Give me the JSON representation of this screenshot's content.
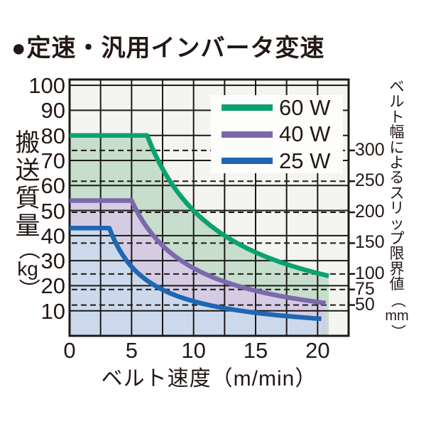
{
  "page": {
    "title": "●定速・汎用インバータ変速"
  },
  "colors": {
    "text": "#231815",
    "grid": "#1c1a18",
    "plot_background": "#f4f4f1",
    "legend_background": "#fdfdfc",
    "green_60w_line": "#0ba26f",
    "purple_40w_line": "#7b69ac",
    "blue_25w_line": "#1e67b3",
    "green_60w_fill": "#c6decb",
    "purple_40w_fill": "#d5cce4",
    "blue_25w_fill": "#ccd9ec"
  },
  "chart_data": {
    "type": "line",
    "title": "●定速・汎用インバータ変速",
    "xlabel": "ベルト速度（m/min）",
    "ylabel_left": "搬送質量（kg）",
    "ylabel_right": "ベルト幅によるスリップ限界値（mm）",
    "xlim": [
      0,
      22.5
    ],
    "ylim": [
      0,
      102.3
    ],
    "grid": "solid black grid, x step 2.5 m/min, y step 10 kg; dashed horizontal slip-limit lines",
    "x_grid_step": 2.5,
    "y_grid_step": 10,
    "x_ticks": [
      0,
      5,
      10,
      15,
      20
    ],
    "y_ticks_left": [
      100,
      90,
      80,
      70,
      60,
      50,
      40,
      30,
      20,
      10
    ],
    "y_axis_right_ticks": [
      {
        "label": "300",
        "kg": 74.0
      },
      {
        "label": "250",
        "kg": 61.7
      },
      {
        "label": "200",
        "kg": 49.3
      },
      {
        "label": "150",
        "kg": 37.0
      },
      {
        "label": "100",
        "kg": 24.7
      },
      {
        "label": "75",
        "kg": 18.5
      },
      {
        "label": "50",
        "kg": 12.3
      }
    ],
    "legend": {
      "position": "top-right",
      "items": [
        "60 W",
        "40 W",
        "25 W"
      ]
    },
    "series": [
      {
        "name": "60 W",
        "id": "60w",
        "color": "#0ba26f",
        "fill": "#c6decb",
        "flat_kg": 80,
        "flat_until_v": 6.25,
        "kg_x_v_const": 500,
        "end_v": 20.9,
        "points": [
          [
            0,
            80
          ],
          [
            6.25,
            80
          ],
          [
            7.5,
            66.7
          ],
          [
            10,
            50
          ],
          [
            12.5,
            40
          ],
          [
            15,
            33.3
          ],
          [
            17.5,
            28.6
          ],
          [
            20,
            25
          ],
          [
            20.9,
            23.9
          ]
        ]
      },
      {
        "name": "40 W",
        "id": "40w",
        "color": "#7b69ac",
        "fill": "#d5cce4",
        "flat_kg": 54,
        "flat_until_v": 5.0,
        "kg_x_v_const": 270,
        "end_v": 20.65,
        "points": [
          [
            0,
            54
          ],
          [
            5,
            54
          ],
          [
            7.5,
            36
          ],
          [
            10,
            27
          ],
          [
            12.5,
            21.6
          ],
          [
            15,
            18
          ],
          [
            17.5,
            15.4
          ],
          [
            20,
            13.5
          ],
          [
            20.65,
            13.1
          ]
        ]
      },
      {
        "name": "25 W",
        "id": "25w",
        "color": "#1e67b3",
        "fill": "#ccd9ec",
        "flat_kg": 43,
        "flat_until_v": 3.2,
        "kg_x_v_const": 138,
        "end_v": 20.3,
        "points": [
          [
            0,
            43
          ],
          [
            3.2,
            43
          ],
          [
            5,
            27.6
          ],
          [
            7.5,
            18.4
          ],
          [
            10,
            13.8
          ],
          [
            12.5,
            11
          ],
          [
            15,
            9.2
          ],
          [
            17.5,
            7.9
          ],
          [
            20,
            6.9
          ],
          [
            20.3,
            6.8
          ]
        ]
      }
    ]
  },
  "left_axis_chars": [
    "搬",
    "送",
    "質",
    "量",
    "（",
    "kg",
    "）"
  ],
  "right_axis_chars": [
    "ベ",
    "ル",
    "ト",
    "幅",
    "に",
    "よ",
    "る",
    "ス",
    "リ",
    "ッ",
    "プ",
    "限",
    "界",
    "値",
    "（",
    "mm",
    "）"
  ]
}
